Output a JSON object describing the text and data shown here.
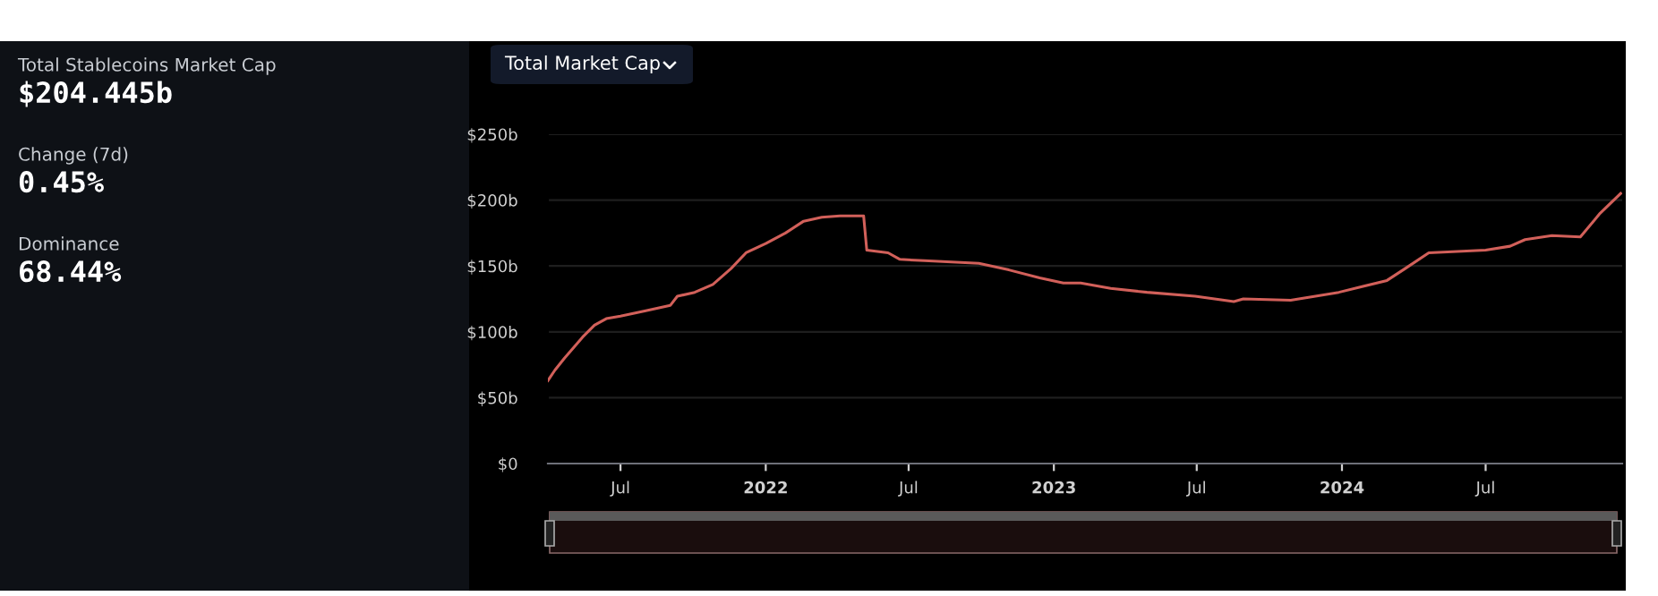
{
  "chart_data": [
    {
      "type": "other",
      "annotations": [
        "Total Stablecoins Market Cap",
        "$204.445b",
        "Change (7d)",
        "0.45%",
        "Dominance",
        "68.44%"
      ]
    },
    {
      "type": "line",
      "title": "Total Market Cap",
      "x": [
        "2021-03-31",
        "2021-04-09",
        "2021-04-21",
        "2021-05-14",
        "2021-05-29",
        "2021-06-13",
        "2021-07-01",
        "2021-08-02",
        "2021-09-02",
        "2021-09-11",
        "2021-10-03",
        "2021-10-26",
        "2021-11-18",
        "2021-12-07",
        "2022-01-01",
        "2022-01-26",
        "2022-02-18",
        "2022-03-13",
        "2022-04-05",
        "2022-05-05",
        "2022-05-09",
        "2022-06-05",
        "2022-06-20",
        "2022-07-21",
        "2022-09-28",
        "2022-11-05",
        "2022-12-14",
        "2023-01-13",
        "2023-02-04",
        "2023-03-14",
        "2023-04-29",
        "2023-06-29",
        "2023-08-17",
        "2023-08-29",
        "2023-10-28",
        "2023-12-28",
        "2024-02-27",
        "2024-03-21",
        "2024-04-20",
        "2024-07-01",
        "2024-08-01",
        "2024-08-20",
        "2024-09-23",
        "2024-10-29",
        "2024-11-23",
        "2024-12-19"
      ],
      "series": [
        {
          "color": "#d2605a",
          "values": [
            63,
            71,
            80,
            96,
            105,
            110,
            112,
            116,
            120,
            127,
            130,
            136,
            148,
            160,
            167,
            175,
            184,
            187,
            188,
            188,
            162,
            160,
            155,
            154,
            152,
            147,
            141,
            137,
            137,
            133,
            130,
            127,
            123,
            125,
            124,
            130,
            139,
            148,
            160,
            162,
            165,
            170,
            173,
            172,
            190,
            205
          ]
        }
      ],
      "xlim": [
        "2021-03-31",
        "2024-12-21"
      ],
      "xticks": [
        {
          "value": "2021-07-01",
          "label": "Jul"
        },
        {
          "value": "2022-01-01",
          "label": "2022"
        },
        {
          "value": "2022-07-01",
          "label": "Jul"
        },
        {
          "value": "2023-01-01",
          "label": "2023"
        },
        {
          "value": "2023-07-01",
          "label": "Jul"
        },
        {
          "value": "2024-01-01",
          "label": "2024"
        },
        {
          "value": "2024-07-01",
          "label": "Jul"
        }
      ],
      "ylim": [
        0,
        250
      ],
      "yticks": [
        {
          "value": 0,
          "label": "$0"
        },
        {
          "value": 50,
          "label": "$50b"
        },
        {
          "value": 100,
          "label": "$100b"
        },
        {
          "value": 150,
          "label": "$150b"
        },
        {
          "value": 200,
          "label": "$200b"
        },
        {
          "value": 250,
          "label": "$250b"
        }
      ],
      "grid": "y",
      "legend": false,
      "marker": "none",
      "line_style": "solid"
    }
  ]
}
